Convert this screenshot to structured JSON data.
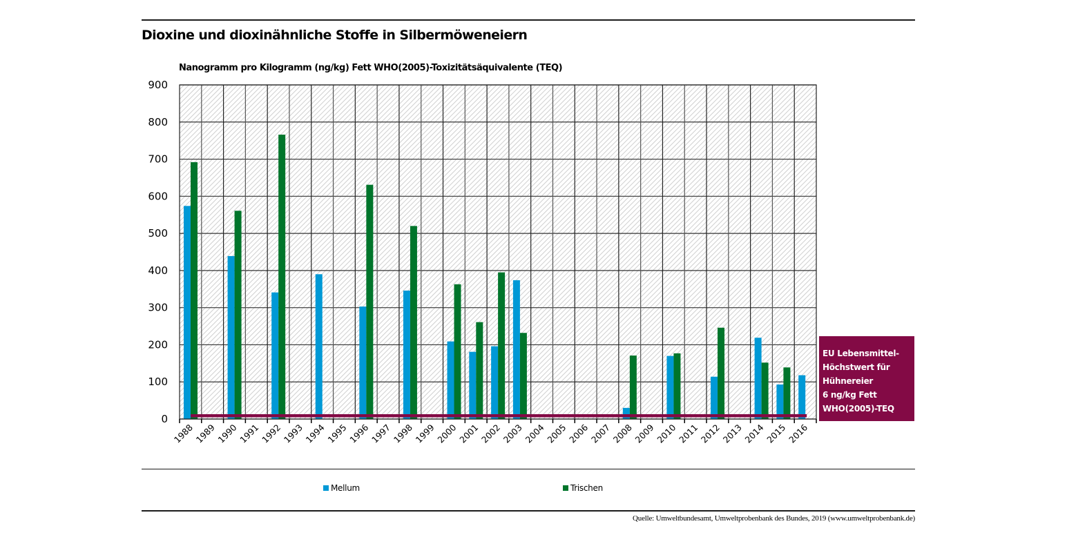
{
  "title": "Dioxine und dioxinähnliche Stoffe in Silbermöweneiern",
  "source": "Quelle: Umweltbundesamt, Umweltprobenbank des Bundes, 2019 (www.umweltprobenbank.de)",
  "annotation": {
    "lines": [
      "EU Lebensmittel-",
      "Höchstwert für",
      "Hühnereier",
      "6 ng/kg Fett",
      "WHO(2005)-TEQ"
    ],
    "color": "#830a45"
  },
  "chart_data": {
    "type": "bar",
    "title": "Dioxine und dioxinähnliche Stoffe in Silbermöweneiern",
    "ylabel": "Nanogramm pro Kilogramm (ng/kg) Fett WHO(2005)-Toxizitätsäquivalente (TEQ)",
    "xlabel": "",
    "ylim": [
      0,
      900
    ],
    "yticks": [
      "0",
      "100",
      "200",
      "300",
      "400",
      "500",
      "600",
      "700",
      "800",
      "900"
    ],
    "grid": true,
    "legend_position": "bottom",
    "categories": [
      "1988",
      "1989",
      "1990",
      "1991",
      "1992",
      "1993",
      "1994",
      "1995",
      "1996",
      "1997",
      "1998",
      "1999",
      "2000",
      "2001",
      "2002",
      "2003",
      "2004",
      "2005",
      "2006",
      "2007",
      "2008",
      "2009",
      "2010",
      "2011",
      "2012",
      "2013",
      "2014",
      "2015",
      "2016"
    ],
    "series": [
      {
        "name": "Mellum",
        "color": "#0099d6",
        "values": [
          574,
          null,
          439,
          null,
          341,
          null,
          390,
          null,
          303,
          null,
          346,
          null,
          209,
          181,
          196,
          374,
          null,
          null,
          null,
          null,
          30,
          null,
          170,
          null,
          114,
          null,
          219,
          93,
          118
        ]
      },
      {
        "name": "Trischen",
        "color": "#00752b",
        "values": [
          692,
          null,
          561,
          null,
          766,
          null,
          null,
          null,
          631,
          null,
          520,
          null,
          363,
          261,
          395,
          232,
          null,
          null,
          null,
          null,
          171,
          null,
          177,
          null,
          246,
          null,
          152,
          139,
          null
        ]
      }
    ],
    "reference_line": {
      "value": 6,
      "label": "EU Lebensmittel-Höchstwert für Hühnereier 6 ng/kg Fett WHO(2005)-TEQ",
      "color": "#830a45"
    }
  }
}
